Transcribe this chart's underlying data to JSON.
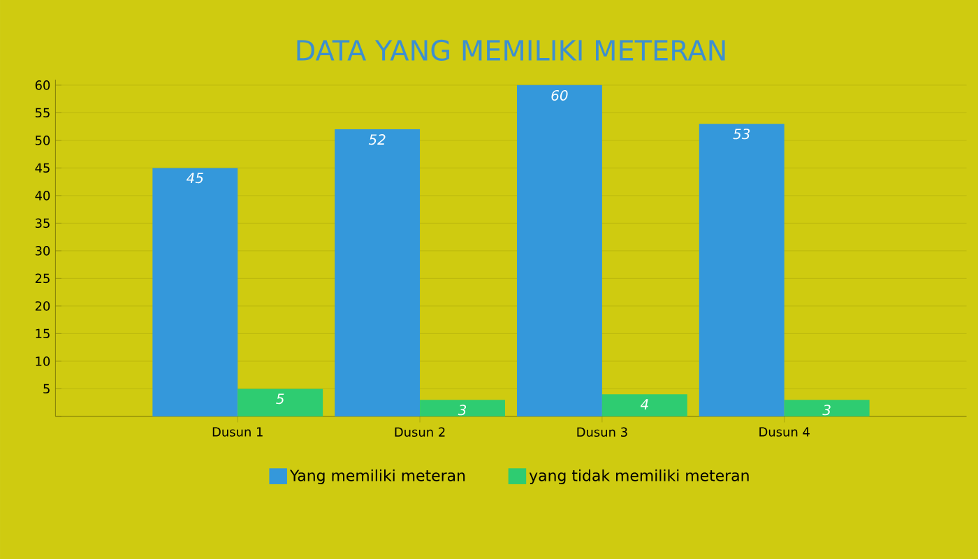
{
  "chart_data": {
    "type": "bar",
    "title": "DATA  YANG MEMILIKI METERAN",
    "categories": [
      "Dusun 1",
      "Dusun 2",
      "Dusun 3",
      "Dusun 4"
    ],
    "series": [
      {
        "name": "Yang memiliki meteran",
        "color": "#3498db",
        "values": [
          45,
          52,
          60,
          53
        ]
      },
      {
        "name": "yang tidak memiliki meteran",
        "color": "#2ecc71",
        "values": [
          5,
          3,
          4,
          3
        ]
      }
    ],
    "ylim": [
      0,
      61
    ],
    "yticks": [
      {
        "value": 0,
        "label": null
      },
      5,
      10,
      15,
      20,
      25,
      30,
      35,
      40,
      45,
      50,
      55,
      60
    ],
    "grid": "y",
    "legend": "bottom",
    "data_labels": true
  }
}
